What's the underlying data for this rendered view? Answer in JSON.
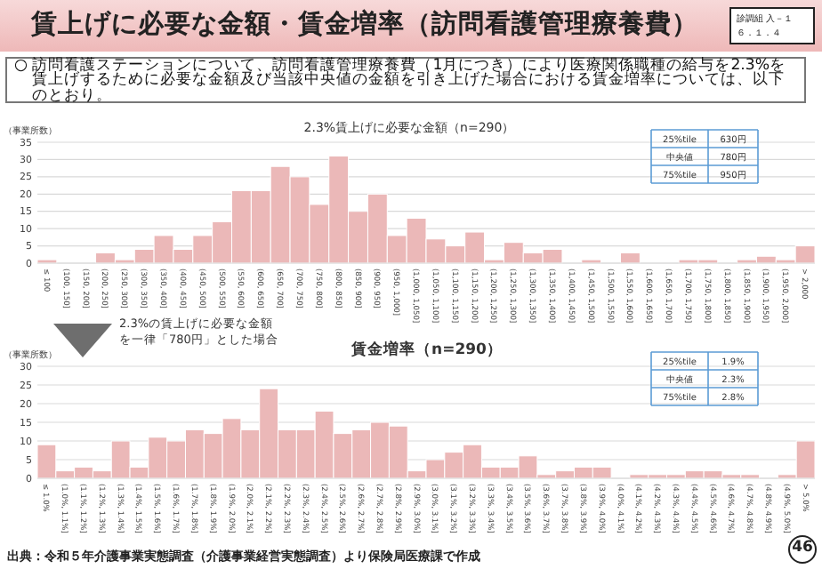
{
  "chart_data": [
    {
      "type": "other",
      "title": "賃上げに必要な金額・賃金増率（訪問看護管理療養費）",
      "subtitle": "○ 訪問看護ステーションについて、訪問看護管理療養費（1月につき）により医療関係職種の給与を2.3%を賃上げするために必要な金額及び当該中央値の金額を引き上げた場合における賃金増率については、以下のとおり。",
      "annotations": [
        "診調組 入－１",
        "６．１．４"
      ]
    },
    {
      "type": "bar",
      "title": "2.3%賃上げに必要な金額（n=290）",
      "ylabel": "（事業所数）",
      "color": "#ebb8b8",
      "ylim": [
        0,
        35
      ],
      "yticks": [
        0,
        5,
        10,
        15,
        20,
        25,
        30,
        35
      ],
      "grid": "y",
      "categories": [
        "≤ 100",
        "(100, 150]",
        "(150, 200]",
        "(200, 250]",
        "(250, 300]",
        "(300, 350]",
        "(350, 400]",
        "(400, 450]",
        "(450, 500]",
        "(500, 550]",
        "(550, 600]",
        "(600, 650]",
        "(650, 700]",
        "(700, 750]",
        "(750, 800]",
        "(800, 850]",
        "(850, 900]",
        "(900, 950]",
        "(950, 1,000]",
        "(1,000, 1,050]",
        "(1,050, 1,100]",
        "(1,100, 1,150]",
        "(1,150, 1,200]",
        "(1,200, 1,250]",
        "(1,250, 1,300]",
        "(1,300, 1,350]",
        "(1,350, 1,400]",
        "(1,400, 1,450]",
        "(1,450, 1,500]",
        "(1,500, 1,550]",
        "(1,550, 1,600]",
        "(1,600, 1,650]",
        "(1,650, 1,700]",
        "(1,700, 1,750]",
        "(1,750, 1,800]",
        "(1,800, 1,850]",
        "(1,850, 1,900]",
        "(1,900, 1,950]",
        "(1,950, 2,000]",
        "> 2,000"
      ],
      "values": [
        1,
        0,
        0,
        3,
        1,
        4,
        8,
        4,
        8,
        12,
        21,
        21,
        28,
        25,
        17,
        31,
        15,
        20,
        8,
        13,
        7,
        5,
        9,
        1,
        6,
        3,
        4,
        0,
        1,
        0,
        3,
        0,
        0,
        1,
        1,
        0,
        1,
        2,
        1,
        5
      ],
      "annotations": [
        "25%tile",
        "630円",
        "中央値",
        "780円",
        "75%tile",
        "950円"
      ]
    },
    {
      "type": "bar",
      "title": "賃金増率（n=290）",
      "ylabel": "（事業所数）",
      "color": "#ebb8b8",
      "ylim": [
        0,
        30
      ],
      "yticks": [
        0,
        5,
        10,
        15,
        20,
        25,
        30
      ],
      "grid": "y",
      "categories": [
        "≤ 1.0%",
        "(1.0%, 1.1%]",
        "(1.1%, 1.2%]",
        "(1.2%, 1.3%]",
        "(1.3%, 1.4%]",
        "(1.4%, 1.5%]",
        "(1.5%, 1.6%]",
        "(1.6%, 1.7%]",
        "(1.7%, 1.8%]",
        "(1.8%, 1.9%]",
        "(1.9%, 2.0%]",
        "(2.0%, 2.1%]",
        "(2.1%, 2.2%]",
        "(2.2%, 2.3%]",
        "(2.3%, 2.4%]",
        "(2.4%, 2.5%]",
        "(2.5%, 2.6%]",
        "(2.6%, 2.7%]",
        "(2.7%, 2.8%]",
        "(2.8%, 2.9%]",
        "(2.9%, 3.0%]",
        "(3.0%, 3.1%]",
        "(3.1%, 3.2%]",
        "(3.2%, 3.3%]",
        "(3.3%, 3.4%]",
        "(3.4%, 3.5%]",
        "(3.5%, 3.6%]",
        "(3.6%, 3.7%]",
        "(3.7%, 3.8%]",
        "(3.8%, 3.9%]",
        "(3.9%, 4.0%]",
        "(4.0%, 4.1%]",
        "(4.1%, 4.2%]",
        "(4.2%, 4.3%]",
        "(4.3%, 4.4%]",
        "(4.4%, 4.5%]",
        "(4.5%, 4.6%]",
        "(4.6%, 4.7%]",
        "(4.7%, 4.8%]",
        "(4.8%, 4.9%]",
        "(4.9%, 5.0%]",
        "> 5.0%"
      ],
      "values": [
        9,
        2,
        3,
        2,
        10,
        3,
        11,
        10,
        13,
        12,
        16,
        13,
        24,
        13,
        13,
        18,
        12,
        13,
        15,
        14,
        2,
        5,
        7,
        9,
        3,
        3,
        6,
        1,
        2,
        3,
        3,
        0,
        1,
        1,
        1,
        2,
        2,
        1,
        1,
        0,
        1,
        10
      ],
      "annotations": [
        "25%tile",
        "1.9%",
        "中央値",
        "2.3%",
        "75%tile",
        "2.8%",
        "2.3%の賃上げに必要な金額を一律「780円」とした場合",
        "出典：令和５年介護事業実態調査（介護事業経営実態調査）より保険局医療課で作成",
        "46"
      ]
    }
  ]
}
